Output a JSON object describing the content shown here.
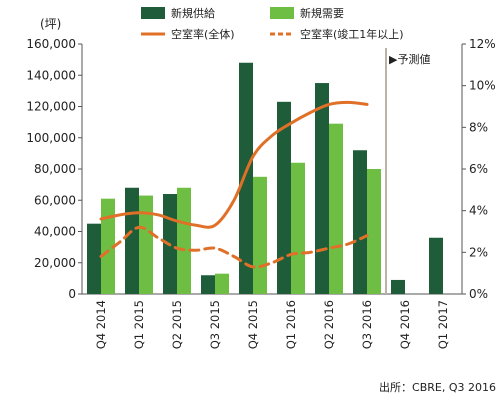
{
  "chart_data": {
    "type": "bar",
    "y_unit_label": "(坪)",
    "categories": [
      "Q4 2014",
      "Q1 2015",
      "Q2 2015",
      "Q3 2015",
      "Q4 2015",
      "Q1 2016",
      "Q2 2016",
      "Q3 2016",
      "Q4 2016",
      "Q1 2017"
    ],
    "ylim": [
      0,
      160000
    ],
    "y2lim": [
      0,
      12
    ],
    "y_ticks": [
      "0",
      "20,000",
      "40,000",
      "60,000",
      "80,000",
      "100,000",
      "120,000",
      "140,000",
      "160,000"
    ],
    "y2_ticks": [
      "0%",
      "2%",
      "4%",
      "6%",
      "8%",
      "10%",
      "12%"
    ],
    "series": [
      {
        "name": "新規供給",
        "kind": "bar",
        "color": "#1f5c3a",
        "values": [
          45000,
          68000,
          64000,
          12000,
          148000,
          123000,
          135000,
          92000,
          9000,
          36000
        ]
      },
      {
        "name": "新規需要",
        "kind": "bar",
        "color": "#6fbe44",
        "values": [
          61000,
          63000,
          68000,
          13000,
          75000,
          84000,
          109000,
          80000,
          null,
          null
        ]
      },
      {
        "name": "空室率(全体)",
        "kind": "line",
        "axis": "right",
        "style": "solid",
        "color": "#e07028",
        "x": [
          0,
          0.5,
          1,
          1.5,
          2,
          2.5,
          3,
          3.5,
          4,
          4.5,
          5,
          5.5,
          6,
          6.5,
          7
        ],
        "values": [
          3.6,
          3.8,
          3.9,
          3.8,
          3.5,
          3.3,
          3.3,
          4.5,
          6.6,
          7.6,
          8.2,
          8.7,
          9.1,
          9.2,
          9.1
        ]
      },
      {
        "name": "空室率(竣工1年以上)",
        "kind": "line",
        "axis": "right",
        "style": "dashed",
        "color": "#e07028",
        "x": [
          0,
          0.5,
          1,
          1.5,
          2,
          2.5,
          3,
          3.5,
          4,
          4.5,
          5,
          5.5,
          6,
          6.5,
          7
        ],
        "values": [
          1.8,
          2.5,
          3.2,
          2.7,
          2.2,
          2.1,
          2.2,
          1.8,
          1.3,
          1.5,
          1.9,
          2.0,
          2.2,
          2.4,
          2.8
        ]
      }
    ],
    "forecast_label": "▶予測値",
    "forecast_start_category": "Q4 2016",
    "source": "出所：CBRE, Q3 2016",
    "grid": false,
    "legend_position": "top"
  }
}
